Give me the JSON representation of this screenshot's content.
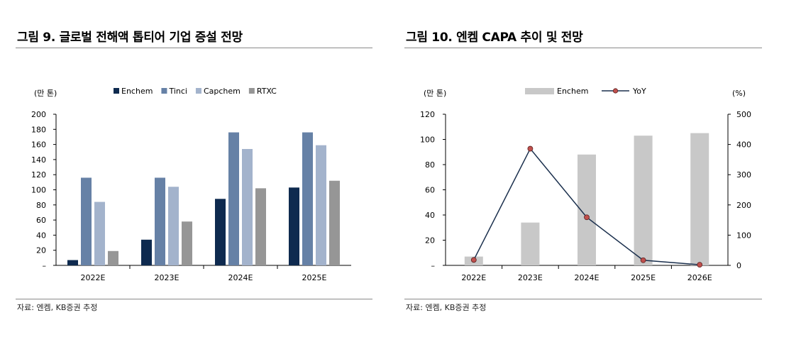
{
  "left": {
    "title": "그림 9. 글로벌 전해액 톱티어 기업 증설 전망",
    "source": "자료: 엔켐, KB증권 추정",
    "chart_data": {
      "type": "bar",
      "unit_label": "(만 톤)",
      "categories": [
        "2022E",
        "2023E",
        "2024E",
        "2025E"
      ],
      "series": [
        {
          "name": "Enchem",
          "color": "#0e2a4f",
          "values": [
            7,
            34,
            88,
            103
          ]
        },
        {
          "name": "Tinci",
          "color": "#6681a6",
          "values": [
            116,
            116,
            176,
            176
          ]
        },
        {
          "name": "Capchem",
          "color": "#a3b3cc",
          "values": [
            84,
            104,
            154,
            159
          ]
        },
        {
          "name": "RTXC",
          "color": "#969696",
          "values": [
            19,
            58,
            102,
            112
          ]
        }
      ],
      "ylim": [
        0,
        200
      ],
      "yticks": [
        "–",
        "20",
        "40",
        "60",
        "80",
        "100",
        "120",
        "140",
        "160",
        "180",
        "200"
      ],
      "legend": "top"
    }
  },
  "right": {
    "title": "그림 10. 엔켐 CAPA 추이 및 전망",
    "source": "자료: 엔켐, KB증권 추정",
    "chart_data": {
      "type": "bar",
      "left_unit_label": "(만 톤)",
      "right_unit_label": "(%)",
      "categories": [
        "2022E",
        "2023E",
        "2024E",
        "2025E",
        "2026E"
      ],
      "series": [
        {
          "name": "Enchem",
          "type": "bar",
          "axis": "left",
          "color": "#c8c8c8",
          "values": [
            7,
            34,
            88,
            103,
            105
          ]
        },
        {
          "name": "YoY",
          "type": "line",
          "axis": "right",
          "color": "#1a2f4d",
          "marker_color": "#c0504d",
          "values": [
            18,
            386,
            159,
            17,
            2
          ]
        }
      ],
      "ylim_left": [
        0,
        120
      ],
      "yticks_left": [
        "–",
        "20",
        "40",
        "60",
        "80",
        "100",
        "120"
      ],
      "ylim_right": [
        0,
        500
      ],
      "yticks_right": [
        "0",
        "100",
        "200",
        "300",
        "400",
        "500"
      ],
      "legend": "top"
    }
  }
}
